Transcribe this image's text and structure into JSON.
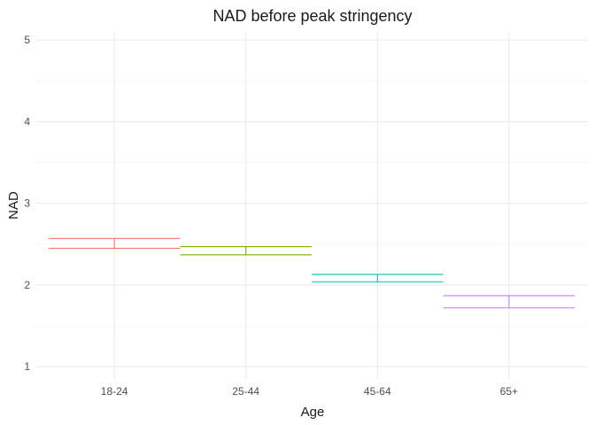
{
  "chart_data": {
    "type": "errorbar",
    "title": "NAD before peak stringency",
    "xlabel": "Age",
    "ylabel": "NAD",
    "categories": [
      "18-24",
      "25-44",
      "45-64",
      "65+"
    ],
    "series": [
      {
        "category": "18-24",
        "low": 2.45,
        "high": 2.57,
        "color": "#F8766D"
      },
      {
        "category": "25-44",
        "low": 2.37,
        "high": 2.47,
        "color": "#7CAE00"
      },
      {
        "category": "45-64",
        "low": 2.04,
        "high": 2.13,
        "color": "#00BFC4"
      },
      {
        "category": "65+",
        "low": 1.72,
        "high": 1.87,
        "color": "#C77CFF"
      }
    ],
    "ylim": [
      0.85,
      5.1
    ],
    "yticks": [
      1,
      2,
      3,
      4,
      5
    ],
    "grid": true,
    "legend": "none"
  }
}
